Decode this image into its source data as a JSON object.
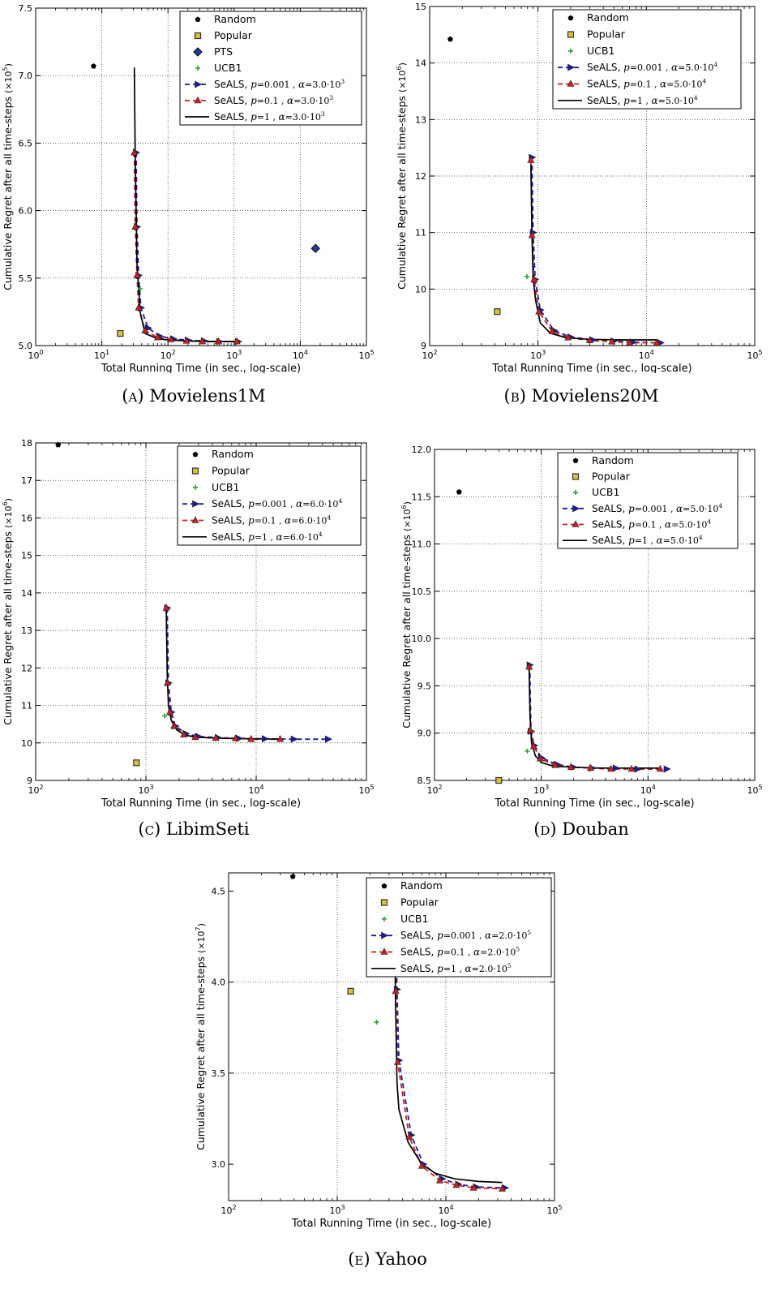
{
  "legend_text": {
    "random": "Random",
    "popular": "Popular",
    "pts": "PTS",
    "ucb1": "UCB1",
    "seals": "SeALS,",
    "p_prefix": "p",
    "alpha_prefix": "α",
    "exp_text": "(×10",
    "exp_close": ")"
  },
  "colors": {
    "random": "#000000",
    "popular_fill": "#d8c23a",
    "popular_edge": "#333333",
    "pts_fill": "#1f3f9f",
    "ucb1": "#2aa02a",
    "seals_p0001": "#1a1aa0",
    "seals_p01": "#cc1f1f",
    "seals_p1": "#000000"
  },
  "chart_data": [
    {
      "type": "scatter",
      "label_letter": "A",
      "dataset": "Movielens1M",
      "xlabel": "Total Running Time (in sec., log-scale)",
      "ylabel": "Cumulative Regret after all time-steps",
      "yexp": "5",
      "xscale": "log",
      "xlim": [
        1,
        100000
      ],
      "ylim": [
        5.0,
        7.5
      ],
      "xticks": [
        [
          "10",
          "0"
        ],
        [
          "10",
          "1"
        ],
        [
          "10",
          "2"
        ],
        [
          "10",
          "3"
        ],
        [
          "10",
          "4"
        ],
        [
          "10",
          "5"
        ]
      ],
      "xtick_values": [
        1,
        10,
        100,
        1000,
        10000,
        100000
      ],
      "yticks": [
        "5.0",
        "5.5",
        "6.0",
        "6.5",
        "7.0",
        "7.5"
      ],
      "ytick_values": [
        5.0,
        5.5,
        6.0,
        6.5,
        7.0,
        7.5
      ],
      "grid": true,
      "legend_position": "top-right",
      "alpha_text": "3.0·10",
      "alpha_exp": "3",
      "random": [
        7.5,
        7.07
      ],
      "popular": [
        19,
        5.09
      ],
      "pts": [
        17000,
        5.72
      ],
      "ucb1": [
        38,
        5.42
      ],
      "seals": [
        {
          "p": "0.001",
          "x": [
            33,
            34,
            36,
            39,
            50,
            75,
            120,
            200,
            350,
            600,
            1150
          ],
          "y": [
            6.43,
            5.88,
            5.52,
            5.28,
            5.13,
            5.07,
            5.05,
            5.04,
            5.035,
            5.03,
            5.03
          ]
        },
        {
          "p": "0.1",
          "x": [
            31,
            32,
            34,
            36,
            45,
            70,
            110,
            190,
            330,
            580,
            1100
          ],
          "y": [
            6.43,
            5.88,
            5.52,
            5.28,
            5.11,
            5.06,
            5.045,
            5.035,
            5.03,
            5.03,
            5.03
          ]
        },
        {
          "p": "1",
          "x": [
            31,
            32,
            34,
            38,
            45,
            70,
            110,
            200,
            400,
            1100
          ],
          "y": [
            7.06,
            6.4,
            5.6,
            5.25,
            5.09,
            5.05,
            5.04,
            5.035,
            5.03,
            5.03
          ]
        }
      ]
    },
    {
      "type": "scatter",
      "label_letter": "B",
      "dataset": "Movielens20M",
      "xlabel": "Total Running Time (in sec., log-scale)",
      "ylabel": "Cumulative Regret after all time-steps",
      "yexp": "6",
      "xscale": "log",
      "xlim": [
        100,
        100000
      ],
      "ylim": [
        9,
        15
      ],
      "xticks": [
        [
          "10",
          "2"
        ],
        [
          "10",
          "3"
        ],
        [
          "10",
          "4"
        ],
        [
          "10",
          "5"
        ]
      ],
      "xtick_values": [
        100,
        1000,
        10000,
        100000
      ],
      "yticks": [
        "9",
        "10",
        "11",
        "12",
        "13",
        "14",
        "15"
      ],
      "ytick_values": [
        9,
        10,
        11,
        12,
        13,
        14,
        15
      ],
      "grid": true,
      "legend_position": "top-right",
      "alpha_text": "5.0·10",
      "alpha_exp": "4",
      "random": [
        155,
        14.42
      ],
      "popular": [
        420,
        9.6
      ],
      "pts": null,
      "ucb1": [
        790,
        10.22
      ],
      "seals": [
        {
          "p": "0.001",
          "x": [
            880,
            900,
            940,
            1050,
            1400,
            2000,
            3200,
            5000,
            7500,
            13500
          ],
          "y": [
            12.33,
            11.0,
            10.17,
            9.63,
            9.27,
            9.15,
            9.1,
            9.08,
            9.06,
            9.05
          ]
        },
        {
          "p": "0.1",
          "x": [
            860,
            880,
            920,
            1020,
            1350,
            1900,
            3000,
            4800,
            7000,
            12500
          ],
          "y": [
            12.28,
            10.95,
            10.17,
            9.6,
            9.25,
            9.14,
            9.09,
            9.07,
            9.05,
            9.05
          ]
        },
        {
          "p": "1",
          "x": [
            860,
            880,
            900,
            950,
            1050,
            1300,
            1800,
            3000,
            6000,
            12500
          ],
          "y": [
            12.2,
            11.0,
            10.2,
            9.8,
            9.4,
            9.22,
            9.14,
            9.11,
            9.1,
            9.1
          ]
        }
      ]
    },
    {
      "type": "scatter",
      "label_letter": "C",
      "dataset": "LibimSeti",
      "xlabel": "Total Running Time (in sec., log-scale)",
      "ylabel": "Cumulative Regret after all time-steps",
      "yexp": "6",
      "xscale": "log",
      "xlim": [
        100,
        100000
      ],
      "ylim": [
        9,
        18
      ],
      "xticks": [
        [
          "10",
          "2"
        ],
        [
          "10",
          "3"
        ],
        [
          "10",
          "4"
        ],
        [
          "10",
          "5"
        ]
      ],
      "xtick_values": [
        100,
        1000,
        10000,
        100000
      ],
      "yticks": [
        "9",
        "10",
        "11",
        "12",
        "13",
        "14",
        "15",
        "16",
        "17",
        "18"
      ],
      "ytick_values": [
        9,
        10,
        11,
        12,
        13,
        14,
        15,
        16,
        17,
        18
      ],
      "grid": true,
      "legend_position": "top-right",
      "alpha_text": "6.0·10",
      "alpha_exp": "4",
      "random": [
        160,
        17.95
      ],
      "popular": [
        820,
        9.47
      ],
      "pts": null,
      "ucb1": [
        1480,
        10.72
      ],
      "seals": [
        {
          "p": "0.001",
          "x": [
            1560,
            1600,
            1700,
            1850,
            2300,
            3000,
            4500,
            7000,
            12000,
            22000,
            45000
          ],
          "y": [
            13.6,
            11.6,
            10.82,
            10.45,
            10.25,
            10.17,
            10.14,
            10.12,
            10.11,
            10.1,
            10.1
          ]
        },
        {
          "p": "0.1",
          "x": [
            1530,
            1570,
            1650,
            1800,
            2200,
            2800,
            4300,
            6500,
            9000,
            16500
          ],
          "y": [
            13.6,
            11.6,
            10.82,
            10.45,
            10.22,
            10.15,
            10.13,
            10.12,
            10.1,
            10.1
          ]
        },
        {
          "p": "1",
          "x": [
            1530,
            1560,
            1600,
            1700,
            1900,
            2300,
            3000,
            5000,
            9000,
            16500
          ],
          "y": [
            13.55,
            11.8,
            11.0,
            10.6,
            10.35,
            10.2,
            10.15,
            10.12,
            10.11,
            10.1
          ]
        }
      ]
    },
    {
      "type": "scatter",
      "label_letter": "D",
      "dataset": "Douban",
      "xlabel": "Total Running Time (in sec., log-scale)",
      "ylabel": "Cumulative Regret after all time-steps",
      "yexp": "6",
      "xscale": "log",
      "xlim": [
        100,
        100000
      ],
      "ylim": [
        8.5,
        12.0
      ],
      "xticks": [
        [
          "10",
          "2"
        ],
        [
          "10",
          "3"
        ],
        [
          "10",
          "4"
        ],
        [
          "10",
          "5"
        ]
      ],
      "xtick_values": [
        100,
        1000,
        10000,
        100000
      ],
      "yticks": [
        "8.5",
        "9.0",
        "9.5",
        "10.0",
        "10.5",
        "11.0",
        "11.5",
        "12.0"
      ],
      "ytick_values": [
        8.5,
        9.0,
        9.5,
        10.0,
        10.5,
        11.0,
        11.5,
        12.0
      ],
      "grid": true,
      "legend_position": "top-right",
      "alpha_text": "5.0·10",
      "alpha_exp": "4",
      "random": [
        170,
        11.55
      ],
      "popular": [
        400,
        8.5
      ],
      "pts": null,
      "ucb1": [
        740,
        8.81
      ],
      "seals": [
        {
          "p": "0.001",
          "x": [
            780,
            800,
            860,
            1000,
            1400,
            2000,
            3000,
            5000,
            8000,
            15000
          ],
          "y": [
            9.72,
            9.02,
            8.87,
            8.74,
            8.67,
            8.64,
            8.63,
            8.63,
            8.62,
            8.62
          ]
        },
        {
          "p": "0.1",
          "x": [
            770,
            790,
            850,
            980,
            1350,
            1900,
            2900,
            4500,
            7000,
            13000
          ],
          "y": [
            9.7,
            9.03,
            8.86,
            8.73,
            8.66,
            8.64,
            8.63,
            8.62,
            8.62,
            8.62
          ]
        },
        {
          "p": "1",
          "x": [
            770,
            785,
            810,
            880,
            1000,
            1300,
            2000,
            3500,
            7000,
            13000
          ],
          "y": [
            9.7,
            9.2,
            8.9,
            8.76,
            8.69,
            8.65,
            8.64,
            8.63,
            8.63,
            8.63
          ]
        }
      ]
    },
    {
      "type": "scatter",
      "label_letter": "E",
      "dataset": "Yahoo",
      "xlabel": "Total Running Time (in sec., log-scale)",
      "ylabel": "Cumulative Regret after all time-steps",
      "yexp": "7",
      "xscale": "log",
      "xlim": [
        100,
        100000
      ],
      "ylim": [
        2.8,
        4.6
      ],
      "xticks": [
        [
          "10",
          "2"
        ],
        [
          "10",
          "3"
        ],
        [
          "10",
          "4"
        ],
        [
          "10",
          "5"
        ]
      ],
      "xtick_values": [
        100,
        1000,
        10000,
        100000
      ],
      "yticks": [
        "3.0",
        "3.5",
        "4.0",
        "4.5"
      ],
      "ytick_values": [
        3.0,
        3.5,
        4.0,
        4.5
      ],
      "grid": true,
      "legend_position": "top-right",
      "alpha_text": "2.0·10",
      "alpha_exp": "5",
      "random": [
        390,
        4.58
      ],
      "popular": [
        1330,
        3.95
      ],
      "pts": null,
      "ucb1": [
        2300,
        3.78
      ],
      "seals": [
        {
          "p": "0.001",
          "x": [
            3500,
            3550,
            3700,
            4800,
            6200,
            9200,
            13000,
            19000,
            35000
          ],
          "y": [
            4.2,
            3.96,
            3.57,
            3.16,
            3.0,
            2.92,
            2.89,
            2.875,
            2.87
          ]
        },
        {
          "p": "0.1",
          "x": [
            3400,
            3450,
            3600,
            4600,
            6000,
            8800,
            12500,
            18000,
            33000
          ],
          "y": [
            4.2,
            3.95,
            3.56,
            3.15,
            2.99,
            2.91,
            2.885,
            2.87,
            2.865
          ]
        },
        {
          "p": "1",
          "x": [
            3400,
            3450,
            3550,
            3700,
            4500,
            6000,
            8000,
            12000,
            20000,
            33000
          ],
          "y": [
            4.15,
            3.85,
            3.45,
            3.3,
            3.12,
            3.0,
            2.95,
            2.92,
            2.905,
            2.9
          ]
        }
      ]
    }
  ]
}
